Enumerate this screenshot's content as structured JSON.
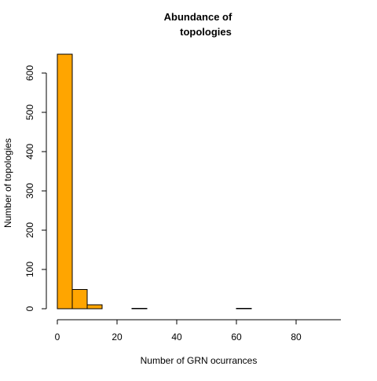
{
  "chart_data": {
    "type": "bar",
    "title_lines": [
      "Abundance of",
      "topologies"
    ],
    "xlabel": "Number of GRN ocurrances",
    "ylabel": "Number of topologies",
    "bar_color": "#FFA500",
    "bar_edge_color": "#000000",
    "xlim": [
      0,
      95
    ],
    "ylim": [
      0,
      650
    ],
    "x_ticks": [
      0,
      20,
      40,
      60,
      80
    ],
    "y_ticks": [
      0,
      100,
      200,
      300,
      400,
      500,
      600
    ],
    "bins": [
      {
        "x0": 0,
        "x1": 5,
        "count": 648
      },
      {
        "x0": 5,
        "x1": 10,
        "count": 49
      },
      {
        "x0": 10,
        "x1": 15,
        "count": 10
      },
      {
        "x0": 15,
        "x1": 20,
        "count": 0
      },
      {
        "x0": 20,
        "x1": 25,
        "count": 0
      },
      {
        "x0": 25,
        "x1": 30,
        "count": 1
      },
      {
        "x0": 30,
        "x1": 35,
        "count": 0
      },
      {
        "x0": 35,
        "x1": 40,
        "count": 0
      },
      {
        "x0": 40,
        "x1": 45,
        "count": 0
      },
      {
        "x0": 45,
        "x1": 50,
        "count": 0
      },
      {
        "x0": 50,
        "x1": 55,
        "count": 0
      },
      {
        "x0": 55,
        "x1": 60,
        "count": 0
      },
      {
        "x0": 60,
        "x1": 65,
        "count": 1
      },
      {
        "x0": 65,
        "x1": 70,
        "count": 0
      },
      {
        "x0": 70,
        "x1": 75,
        "count": 0
      },
      {
        "x0": 75,
        "x1": 80,
        "count": 0
      },
      {
        "x0": 80,
        "x1": 85,
        "count": 0
      },
      {
        "x0": 85,
        "x1": 90,
        "count": 0
      },
      {
        "x0": 90,
        "x1": 95,
        "count": 0
      }
    ]
  }
}
